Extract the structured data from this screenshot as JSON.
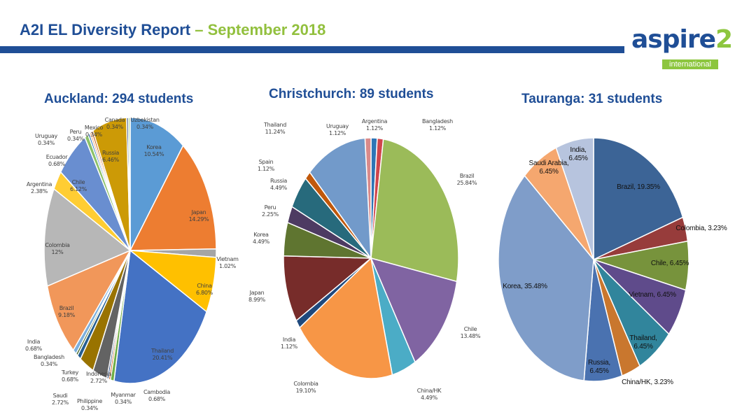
{
  "header": {
    "title": "A2I EL Diversity Report",
    "subtitle": " – September 2018"
  },
  "logo": {
    "word": "aspire",
    "number": "2",
    "tagline": "international"
  },
  "colors": {
    "brand_blue": "#1f4e96",
    "brand_green": "#92c03e"
  },
  "chart_data": [
    {
      "type": "pie",
      "title": "Auckland: 294 students",
      "unit": "%",
      "slices": [
        {
          "name": "Korea",
          "value": 10.54,
          "label": "10.54%",
          "color": "#5b9bd5"
        },
        {
          "name": "Japan",
          "value": 14.29,
          "label": "14.29%",
          "color": "#ed7d31"
        },
        {
          "name": "Vietnam",
          "value": 1.02,
          "label": "1.02%",
          "color": "#a5a5a5"
        },
        {
          "name": "China",
          "value": 6.8,
          "label": "6.80%",
          "color": "#ffc000"
        },
        {
          "name": "Thailand",
          "value": 20.41,
          "label": "20.41%",
          "color": "#4472c4"
        },
        {
          "name": "Cambodia",
          "value": 0.68,
          "label": "0.68%",
          "color": "#70ad47"
        },
        {
          "name": "Myanmar",
          "value": 0.34,
          "label": "0.34%",
          "color": "#c55a11"
        },
        {
          "name": "Philippine",
          "value": 0.34,
          "label": "0.34%",
          "color": "#264478"
        },
        {
          "name": "Indonesia",
          "value": 2.72,
          "label": "2.72%",
          "color": "#636363"
        },
        {
          "name": "Saudi",
          "value": 2.72,
          "label": "2.72%",
          "color": "#997300"
        },
        {
          "name": "Turkey",
          "value": 0.68,
          "label": "0.68%",
          "color": "#255e91"
        },
        {
          "name": "Bangladesh",
          "value": 0.34,
          "label": "0.34%",
          "color": "#43682b"
        },
        {
          "name": "India",
          "value": 0.68,
          "label": "0.68%",
          "color": "#7cafdd"
        },
        {
          "name": "Brazil",
          "value": 9.18,
          "label": "9.18%",
          "color": "#f1975a"
        },
        {
          "name": "Colombia",
          "value": 12,
          "label": "12%",
          "color": "#b7b7b7"
        },
        {
          "name": "Argentina",
          "value": 2.38,
          "label": "2.38%",
          "color": "#ffcd33"
        },
        {
          "name": "Chile",
          "value": 6.12,
          "label": "6.12%",
          "color": "#698ed0"
        },
        {
          "name": "Ecuador",
          "value": 0.68,
          "label": "0.68%",
          "color": "#8cc168"
        },
        {
          "name": "Uruguay",
          "value": 0.34,
          "label": "0.34%",
          "color": "#327dc2"
        },
        {
          "name": "Peru",
          "value": 0.34,
          "label": "0.34%",
          "color": "#f4b183"
        },
        {
          "name": "Mexico",
          "value": 0.34,
          "label": "0.34%",
          "color": "#c55a11"
        },
        {
          "name": "Russia",
          "value": 6.46,
          "label": "6.46%",
          "color": "#cc9a06"
        },
        {
          "name": "Canada",
          "value": 0.34,
          "label": "0.34%",
          "color": "#264478"
        },
        {
          "name": "Uzbekistan",
          "value": 0.34,
          "label": "0.34%",
          "color": "#a9d18e"
        }
      ]
    },
    {
      "type": "pie",
      "title": "Christchurch: 89 students",
      "unit": "%",
      "slices": [
        {
          "name": "Uruguay",
          "value": 1.12,
          "label": "1.12%",
          "color": "#d98a8a"
        },
        {
          "name": "Argentina",
          "value": 1.12,
          "label": "1.12%",
          "color": "#2e75b6"
        },
        {
          "name": "Bangladesh",
          "value": 1.12,
          "label": "1.12%",
          "color": "#d0454c"
        },
        {
          "name": "Brazil",
          "value": 25.84,
          "label": "25.84%",
          "color": "#9bbb59"
        },
        {
          "name": "Chile",
          "value": 13.48,
          "label": "13.48%",
          "color": "#8064a2"
        },
        {
          "name": "China/HK",
          "value": 4.49,
          "label": "4.49%",
          "color": "#4bacc6"
        },
        {
          "name": "Colombia",
          "value": 19.1,
          "label": "19.10%",
          "color": "#f79646"
        },
        {
          "name": "India",
          "value": 1.12,
          "label": "1.12%",
          "color": "#1f497d"
        },
        {
          "name": "Japan",
          "value": 8.99,
          "label": "8.99%",
          "color": "#772c2a"
        },
        {
          "name": "Korea",
          "value": 4.49,
          "label": "4.49%",
          "color": "#5f7530"
        },
        {
          "name": "Peru",
          "value": 2.25,
          "label": "2.25%",
          "color": "#4d3b62"
        },
        {
          "name": "Russia",
          "value": 4.49,
          "label": "4.49%",
          "color": "#276a7c"
        },
        {
          "name": "Spain",
          "value": 1.12,
          "label": "1.12%",
          "color": "#c0580b"
        },
        {
          "name": "Thailand",
          "value": 11.24,
          "label": "11.24%",
          "color": "#729aca"
        }
      ]
    },
    {
      "type": "pie",
      "title": "Tauranga: 31 students",
      "unit": "%",
      "slices": [
        {
          "name": "Brazil",
          "value": 19.35,
          "label": "19.35%",
          "color": "#3c6496"
        },
        {
          "name": "Colombia",
          "value": 3.23,
          "label": "3.23%",
          "color": "#973c3b"
        },
        {
          "name": "Chile",
          "value": 6.45,
          "label": "6.45%",
          "color": "#77933c"
        },
        {
          "name": "Vietnam",
          "value": 6.45,
          "label": "6.45%",
          "color": "#5f4b8b"
        },
        {
          "name": "Thailand",
          "value": 6.45,
          "label": "6.45%",
          "color": "#31859c"
        },
        {
          "name": "China/HK",
          "value": 3.23,
          "label": "3.23%",
          "color": "#c9772e"
        },
        {
          "name": "Russia",
          "value": 6.45,
          "label": "6.45%",
          "color": "#4a72b0"
        },
        {
          "name": "Korea",
          "value": 35.48,
          "label": "35.48%",
          "color": "#7f9dc9"
        },
        {
          "name": "Saudi Arabia",
          "value": 6.45,
          "label": "6.45%",
          "color": "#f5a76f"
        },
        {
          "name": "India",
          "value": 6.45,
          "label": "6.45%",
          "color": "#b7c4de"
        }
      ]
    }
  ]
}
